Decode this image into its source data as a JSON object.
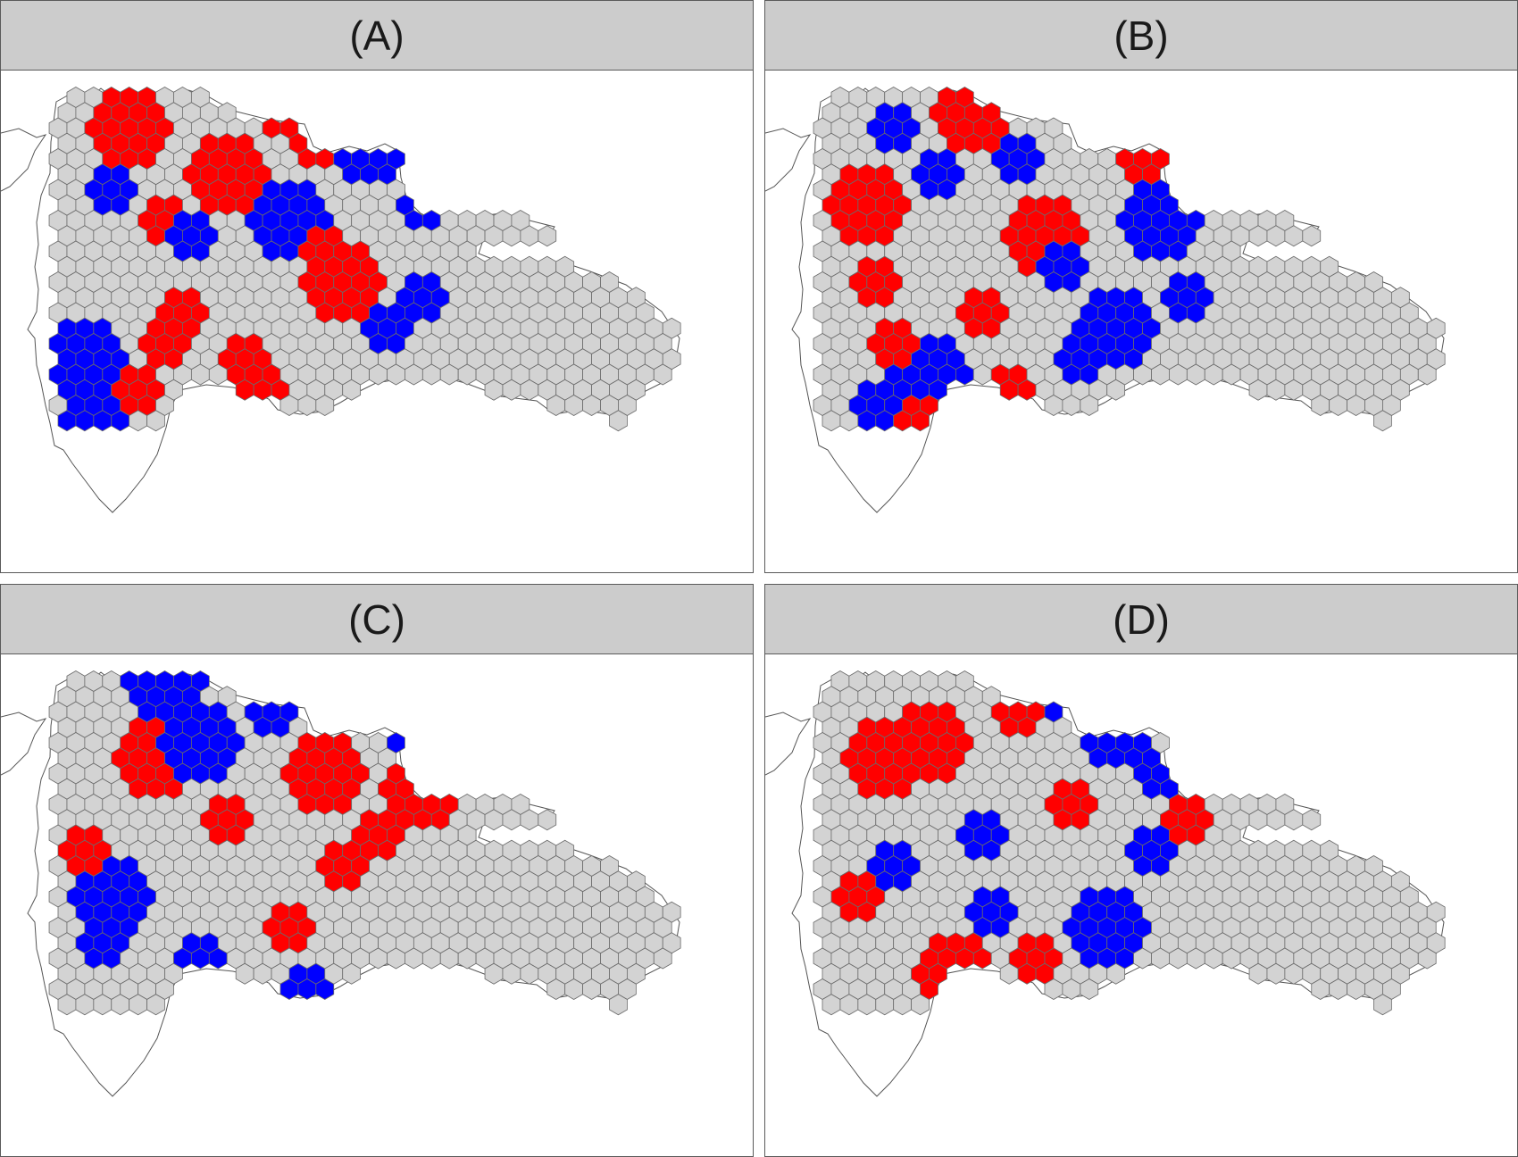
{
  "panels": [
    {
      "label": "(A)",
      "clusters": [
        [
          2,
          4
        ],
        [
          6,
          3
        ],
        [
          14,
          7
        ],
        [
          17,
          1
        ],
        [
          8,
          6
        ],
        [
          7,
          20
        ],
        [
          0,
          13
        ],
        [
          6,
          11
        ],
        [
          16,
          6
        ],
        [
          8,
          13
        ],
        [
          17,
          10
        ],
        [
          13,
          20
        ],
        [
          5,
          9
        ],
        [
          16,
          2
        ],
        [
          19,
          11
        ],
        [
          22,
          2
        ],
        [
          10,
          15
        ],
        [
          15,
          18
        ],
        [
          12,
          16
        ],
        [
          9,
          7
        ],
        [
          3,
          14
        ],
        [
          3,
          17
        ],
        [
          19,
          4
        ]
      ]
    },
    {
      "label": "(B)",
      "clusters": [
        [
          3,
          18
        ],
        [
          5,
          6
        ],
        [
          12,
          3
        ],
        [
          15,
          16
        ],
        [
          19,
          10
        ],
        [
          4,
          11
        ],
        [
          9,
          12
        ],
        [
          13,
          20
        ],
        [
          0,
          15
        ],
        [
          18,
          6
        ],
        [
          21,
          5
        ],
        [
          2,
          4
        ],
        [
          7,
          2
        ],
        [
          11,
          13
        ],
        [
          16,
          4
        ],
        [
          8,
          19
        ],
        [
          14,
          9
        ],
        [
          17,
          14
        ],
        [
          1,
          8
        ],
        [
          20,
          3
        ]
      ]
    },
    {
      "label": "(C)",
      "clusters": [
        [
          5,
          5
        ],
        [
          2,
          12
        ],
        [
          9,
          9
        ],
        [
          14,
          3
        ],
        [
          12,
          16
        ],
        [
          18,
          8
        ],
        [
          7,
          20
        ],
        [
          3,
          19
        ],
        [
          16,
          13
        ],
        [
          0,
          6
        ],
        [
          11,
          1
        ],
        [
          20,
          14
        ],
        [
          6,
          15
        ],
        [
          17,
          2
        ],
        [
          10,
          18
        ],
        [
          4,
          8
        ]
      ]
    },
    {
      "label": "(D)",
      "clusters": [
        [
          4,
          6
        ],
        [
          12,
          4
        ],
        [
          8,
          14
        ],
        [
          16,
          16
        ],
        [
          2,
          11
        ],
        [
          10,
          9
        ],
        [
          19,
          7
        ],
        [
          6,
          19
        ],
        [
          14,
          2
        ],
        [
          0,
          14
        ],
        [
          18,
          12
        ],
        [
          11,
          18
        ],
        [
          5,
          3
        ],
        [
          15,
          9
        ],
        [
          9,
          20
        ],
        [
          3,
          16
        ]
      ]
    }
  ],
  "legend_colors": {
    "high": "#ff0000",
    "low": "#0000ff",
    "neutral": "#d3d3d3",
    "grid": "#6b6b6b"
  }
}
